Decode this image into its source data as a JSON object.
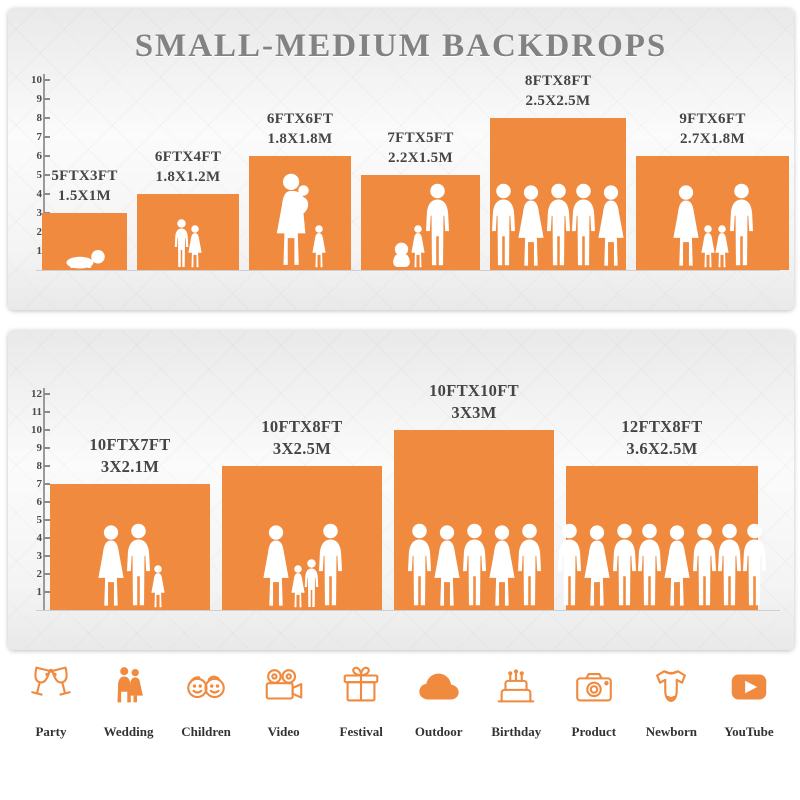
{
  "accent": "#EF8A3F",
  "panel1": {
    "title": "SMALL-MEDIUM BACKDROPS",
    "ruler_ticks": [
      1,
      2,
      3,
      4,
      5,
      6,
      7,
      8,
      9,
      10
    ],
    "backdrops": [
      {
        "label_ft": "5FTX3FT",
        "label_m": "1.5X1M",
        "w_ft": 5,
        "h_ft": 3,
        "figures": [
          "baby-crawl"
        ]
      },
      {
        "label_ft": "6FTX4FT",
        "label_m": "1.8X1.2M",
        "w_ft": 6,
        "h_ft": 4,
        "figures": [
          "boy",
          "girl"
        ]
      },
      {
        "label_ft": "6FTX6FT",
        "label_m": "1.8X1.8M",
        "w_ft": 6,
        "h_ft": 6,
        "figures": [
          "mom-baby",
          "girl"
        ]
      },
      {
        "label_ft": "7FTX5FT",
        "label_m": "2.2X1.5M",
        "w_ft": 7,
        "h_ft": 5,
        "figures": [
          "baby-sit",
          "girl",
          "adult-m"
        ]
      },
      {
        "label_ft": "8FTX8FT",
        "label_m": "2.5X2.5M",
        "w_ft": 8,
        "h_ft": 8,
        "figures": [
          "adult-m",
          "adult-f",
          "adult-m",
          "adult-m",
          "adult-f"
        ]
      },
      {
        "label_ft": "9FTX6FT",
        "label_m": "2.7X1.8M",
        "w_ft": 9,
        "h_ft": 6,
        "figures": [
          "adult-f",
          "girl",
          "girl",
          "adult-m"
        ]
      }
    ]
  },
  "panel2": {
    "ruler_ticks": [
      1,
      2,
      3,
      4,
      5,
      6,
      7,
      8,
      9,
      10,
      11,
      12
    ],
    "backdrops": [
      {
        "label_ft": "10FTX7FT",
        "label_m": "3X2.1M",
        "w_ft": 10,
        "h_ft": 7,
        "figures": [
          "adult-f",
          "adult-m",
          "girl"
        ]
      },
      {
        "label_ft": "10FTX8FT",
        "label_m": "3X2.5M",
        "w_ft": 10,
        "h_ft": 8,
        "figures": [
          "adult-f",
          "girl",
          "boy",
          "adult-m"
        ]
      },
      {
        "label_ft": "10FTX10FT",
        "label_m": "3X3M",
        "w_ft": 10,
        "h_ft": 10,
        "figures": [
          "adult-m",
          "adult-f",
          "adult-m",
          "adult-f",
          "adult-m"
        ]
      },
      {
        "label_ft": "12FTX8FT",
        "label_m": "3.6X2.5M",
        "w_ft": 12,
        "h_ft": 8,
        "figures": [
          "adult-m",
          "adult-f",
          "adult-m",
          "adult-m",
          "adult-f",
          "adult-m",
          "adult-m",
          "adult-m"
        ]
      }
    ]
  },
  "categories": [
    {
      "icon": "party-icon",
      "label": "Party"
    },
    {
      "icon": "wedding-icon",
      "label": "Wedding"
    },
    {
      "icon": "children-icon",
      "label": "Children"
    },
    {
      "icon": "video-icon",
      "label": "Video"
    },
    {
      "icon": "festival-icon",
      "label": "Festival"
    },
    {
      "icon": "outdoor-icon",
      "label": "Outdoor"
    },
    {
      "icon": "birthday-icon",
      "label": "Birthday"
    },
    {
      "icon": "product-icon",
      "label": "Product"
    },
    {
      "icon": "newborn-icon",
      "label": "Newborn"
    },
    {
      "icon": "youtube-icon",
      "label": "YouTube"
    }
  ]
}
